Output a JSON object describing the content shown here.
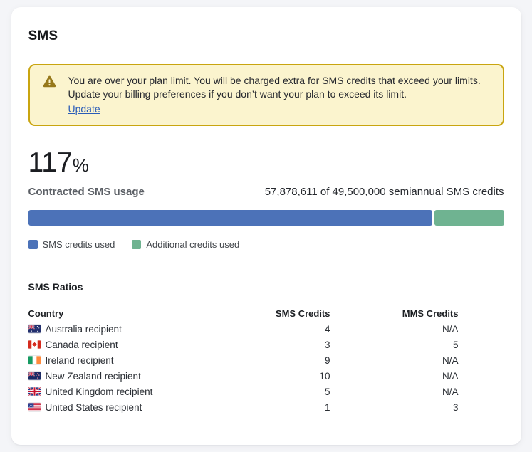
{
  "page": {
    "title": "SMS"
  },
  "banner": {
    "message": "You are over your plan limit. You will be charged extra for SMS credits that exceed your limits. Update your billing preferences if you don’t want your plan to exceed its limit.",
    "link_label": "Update"
  },
  "usage": {
    "percent_value": "117",
    "percent_symbol": "%",
    "label": "Contracted SMS usage",
    "detail": "57,878,611 of 49,500,000 semiannual SMS credits",
    "bar": {
      "used_percent": 85,
      "additional_percent": 15
    },
    "legend": [
      {
        "label": "SMS credits used",
        "color": "#4c72b8"
      },
      {
        "label": "Additional credits used",
        "color": "#6fb391"
      }
    ]
  },
  "ratios": {
    "heading": "SMS Ratios",
    "columns": [
      "Country",
      "SMS Credits",
      "MMS Credits"
    ],
    "rows": [
      {
        "flag": "australia",
        "country": "Australia recipient",
        "sms": "4",
        "mms": "N/A"
      },
      {
        "flag": "canada",
        "country": "Canada recipient",
        "sms": "3",
        "mms": "5"
      },
      {
        "flag": "ireland",
        "country": "Ireland recipient",
        "sms": "9",
        "mms": "N/A"
      },
      {
        "flag": "new-zealand",
        "country": "New Zealand recipient",
        "sms": "10",
        "mms": "N/A"
      },
      {
        "flag": "united-kingdom",
        "country": "United Kingdom recipient",
        "sms": "5",
        "mms": "N/A"
      },
      {
        "flag": "united-states",
        "country": "United States recipient",
        "sms": "1",
        "mms": "3"
      }
    ]
  },
  "colors": {
    "page_bg": "#f4f5f8",
    "card_bg": "#ffffff",
    "banner_bg": "#fbf4ce",
    "banner_border": "#c9a510",
    "warning_icon": "#96781a",
    "link_blue": "#2a5cb8",
    "bar_used": "#4c72b8",
    "bar_additional": "#6fb391"
  }
}
